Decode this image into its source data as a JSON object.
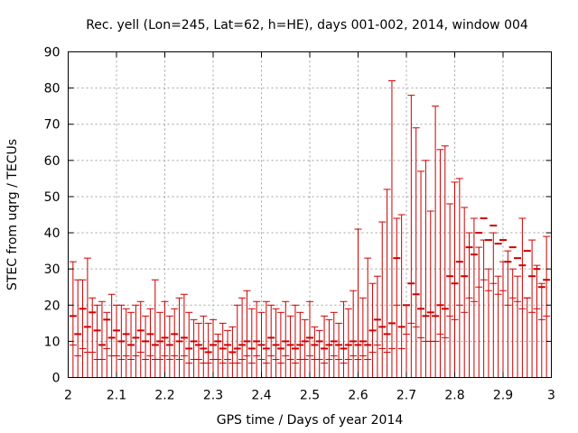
{
  "chart_data": {
    "type": "errorbar",
    "title": "Rec. yell (Lon=245, Lat=62, h=HE), days 001-002, 2014, window 004",
    "xlabel": "GPS time / Days of year 2014",
    "ylabel": "STEC from uqrg / TECUs",
    "xlim": [
      2,
      3
    ],
    "ylim": [
      0,
      90
    ],
    "xticks": [
      2,
      2.1,
      2.2,
      2.3,
      2.4,
      2.5,
      2.6,
      2.7,
      2.8,
      2.9,
      3
    ],
    "xtick_labels": [
      "2",
      "2.1",
      "2.2",
      "2.3",
      "2.4",
      "2.5",
      "2.6",
      "2.7",
      "2.8",
      "2.9",
      "3"
    ],
    "yticks": [
      0,
      10,
      20,
      30,
      40,
      50,
      60,
      70,
      80,
      90
    ],
    "ytick_labels": [
      "0",
      "10",
      "20",
      "30",
      "40",
      "50",
      "60",
      "70",
      "80",
      "90"
    ],
    "grid": true,
    "series_color": "#cc0000",
    "series": [
      {
        "name": "STEC",
        "x": [
          2.01,
          2.02,
          2.03,
          2.04,
          2.05,
          2.06,
          2.07,
          2.08,
          2.09,
          2.1,
          2.11,
          2.12,
          2.13,
          2.14,
          2.15,
          2.16,
          2.17,
          2.18,
          2.19,
          2.2,
          2.21,
          2.22,
          2.23,
          2.24,
          2.25,
          2.26,
          2.27,
          2.28,
          2.29,
          2.3,
          2.31,
          2.32,
          2.33,
          2.34,
          2.35,
          2.36,
          2.37,
          2.38,
          2.39,
          2.4,
          2.41,
          2.42,
          2.43,
          2.44,
          2.45,
          2.46,
          2.47,
          2.48,
          2.49,
          2.5,
          2.51,
          2.52,
          2.53,
          2.54,
          2.55,
          2.56,
          2.57,
          2.58,
          2.59,
          2.6,
          2.61,
          2.62,
          2.63,
          2.64,
          2.65,
          2.66,
          2.67,
          2.68,
          2.69,
          2.7,
          2.71,
          2.72,
          2.73,
          2.74,
          2.75,
          2.76,
          2.77,
          2.78,
          2.79,
          2.8,
          2.81,
          2.82,
          2.83,
          2.84,
          2.85,
          2.86,
          2.87,
          2.88,
          2.89,
          2.9,
          2.91,
          2.92,
          2.93,
          2.94,
          2.95,
          2.96,
          2.97,
          2.98,
          2.99
        ],
        "y": [
          17,
          12,
          19,
          14,
          18,
          13,
          9,
          16,
          11,
          13,
          10,
          12,
          9,
          11,
          13,
          10,
          12,
          9,
          10,
          11,
          9,
          12,
          10,
          11,
          8,
          10,
          9,
          8,
          7,
          9,
          10,
          8,
          9,
          7,
          8,
          9,
          10,
          8,
          10,
          9,
          8,
          11,
          9,
          8,
          10,
          9,
          8,
          9,
          10,
          11,
          9,
          10,
          8,
          9,
          10,
          9,
          8,
          9,
          10,
          9,
          10,
          9,
          13,
          16,
          14,
          12,
          15,
          33,
          14,
          20,
          26,
          23,
          19,
          17,
          18,
          17,
          20,
          19,
          28,
          26,
          32,
          28,
          36,
          34,
          40,
          44,
          38,
          42,
          37,
          38,
          32,
          36,
          33,
          31,
          35,
          28,
          30,
          25,
          27
        ],
        "low": [
          9,
          6,
          8,
          7,
          7,
          5,
          5,
          8,
          6,
          6,
          5,
          6,
          5,
          6,
          7,
          5,
          6,
          5,
          5,
          6,
          5,
          6,
          5,
          6,
          4,
          5,
          5,
          4,
          4,
          5,
          5,
          4,
          5,
          4,
          4,
          5,
          6,
          4,
          6,
          5,
          4,
          6,
          5,
          4,
          6,
          5,
          4,
          5,
          5,
          6,
          5,
          5,
          4,
          5,
          6,
          5,
          4,
          5,
          6,
          5,
          6,
          5,
          7,
          9,
          8,
          7,
          8,
          20,
          8,
          12,
          15,
          14,
          11,
          10,
          10,
          10,
          12,
          11,
          17,
          16,
          20,
          18,
          22,
          21,
          25,
          27,
          24,
          26,
          23,
          24,
          20,
          22,
          21,
          19,
          22,
          18,
          19,
          16,
          17
        ],
        "high": [
          32,
          27,
          27,
          33,
          22,
          20,
          21,
          18,
          23,
          20,
          20,
          19,
          18,
          20,
          21,
          17,
          19,
          27,
          18,
          21,
          17,
          19,
          22,
          23,
          18,
          16,
          15,
          17,
          15,
          16,
          12,
          15,
          13,
          14,
          20,
          22,
          24,
          19,
          21,
          18,
          21,
          20,
          19,
          18,
          21,
          17,
          20,
          18,
          16,
          21,
          14,
          13,
          17,
          16,
          18,
          15,
          21,
          19,
          24,
          41,
          22,
          33,
          26,
          28,
          43,
          52,
          82,
          44,
          45,
          20,
          78,
          69,
          57,
          60,
          46,
          75,
          63,
          64,
          48,
          54,
          55,
          47,
          40,
          44,
          36,
          38,
          30,
          40,
          28,
          32,
          35,
          30,
          28,
          44,
          22,
          38,
          31,
          26,
          39
        ]
      }
    ]
  }
}
